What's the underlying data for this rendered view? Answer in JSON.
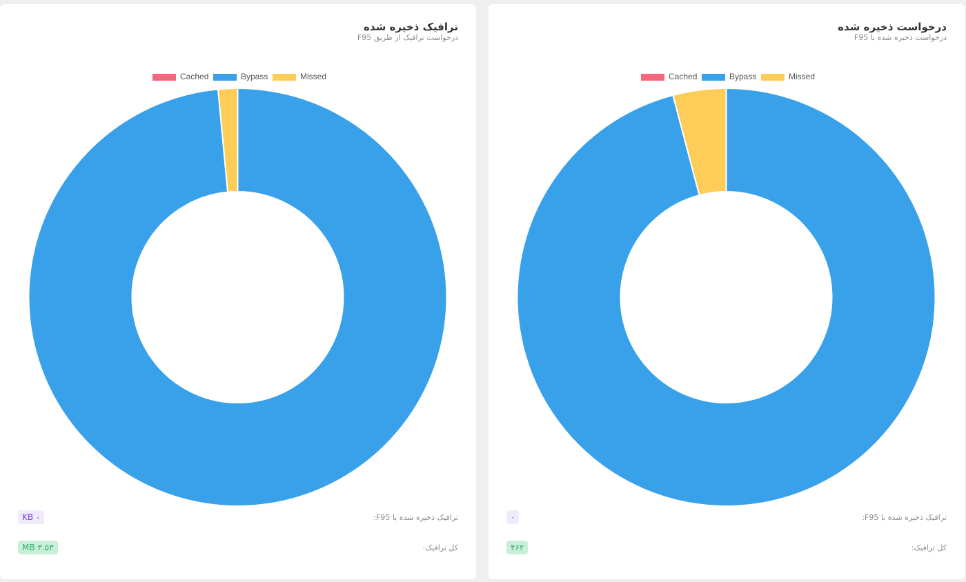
{
  "colors": {
    "cached": "#f7657f",
    "bypass": "#38a1ea",
    "missed": "#fecd57"
  },
  "panels": {
    "left": {
      "title": "ترافیک ذخیره شده",
      "subtitle": "درخواست ترافیک از طریق F95",
      "saved_label": "ترافیک ذخیره شده با F95:",
      "saved_value": "KB ۰",
      "total_label": "کل ترافیک:",
      "total_value": "MB ۳.۵۳"
    },
    "right": {
      "title": "درخواست ذخیره شده",
      "subtitle": "درخواست ذخیره شده با F95",
      "saved_label": "ترافیک ذخیره شده با F95:",
      "saved_value": "۰",
      "total_label": "کل ترافیک:",
      "total_value": "۴۶۲"
    }
  },
  "chart_data": [
    {
      "type": "pie",
      "donut": true,
      "categories": [
        "Cached",
        "Bypass",
        "Missed"
      ],
      "values": [
        0,
        98.5,
        1.5
      ],
      "legend": "top-center"
    },
    {
      "type": "pie",
      "donut": true,
      "categories": [
        "Cached",
        "Bypass",
        "Missed"
      ],
      "values": [
        0,
        95.9,
        4.1
      ],
      "legend": "top-center"
    }
  ]
}
